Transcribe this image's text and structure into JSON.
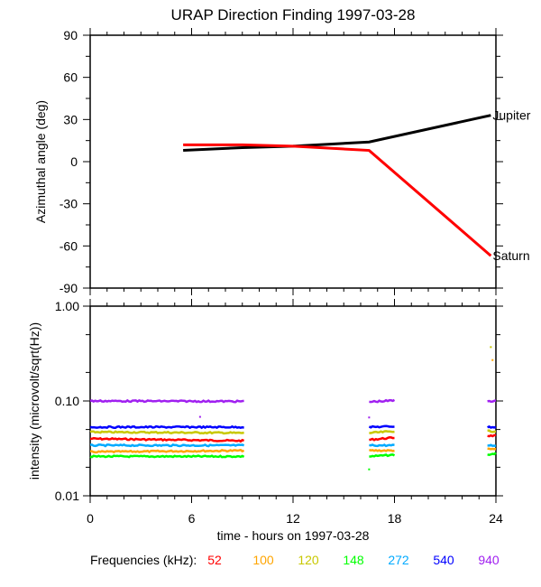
{
  "chart_data": [
    {
      "type": "line",
      "title": "URAP Direction Finding  1997-03-28",
      "ylabel": "Azimuthal angle (deg)",
      "xlabel": "",
      "xlim": [
        0,
        24
      ],
      "ylim": [
        -90,
        90
      ],
      "yticks": [
        "90",
        "60",
        "30",
        "0",
        "-30",
        "-60",
        "-90"
      ],
      "ytick_values": [
        90,
        60,
        30,
        0,
        -30,
        -60,
        -90
      ],
      "series": [
        {
          "name": "Jupiter",
          "color": "#000000",
          "x": [
            5.5,
            9,
            12,
            16.5,
            23.7
          ],
          "y": [
            8,
            10,
            11,
            14,
            33
          ]
        },
        {
          "name": "Saturn",
          "color": "#ff0000",
          "x": [
            5.5,
            9,
            12,
            16.5,
            23.7
          ],
          "y": [
            12,
            12,
            11,
            8,
            -67
          ]
        }
      ]
    },
    {
      "type": "line",
      "ylabel": "intensity (microvolt/sqrt(Hz))",
      "xlabel": "time - hours on 1997-03-28",
      "xlim": [
        0,
        24
      ],
      "ylim": [
        0.01,
        1.0
      ],
      "yscale": "log",
      "yticks": [
        "1.00",
        "0.10",
        "0.01"
      ],
      "ytick_values": [
        1.0,
        0.1,
        0.01
      ],
      "xticks": [
        "0",
        "6",
        "12",
        "18",
        "24"
      ],
      "xtick_values": [
        0,
        6,
        12,
        18,
        24
      ],
      "legend_title": "Frequencies (kHz):",
      "segments_hours": [
        [
          0,
          9.1
        ],
        [
          16.5,
          18.0
        ],
        [
          23.5,
          24.0
        ]
      ],
      "series": [
        {
          "name": "52",
          "color": "#ff0000",
          "levels": [
            [
              0.04,
              0.038
            ],
            [
              0.039,
              0.041
            ],
            [
              0.043,
              0.043
            ]
          ]
        },
        {
          "name": "100",
          "color": "#ffa500",
          "levels": [
            [
              0.029,
              0.03
            ],
            [
              0.03,
              0.03
            ],
            [
              0.031,
              0.031
            ]
          ],
          "points": [
            [
              23.8,
              0.27
            ]
          ]
        },
        {
          "name": "120",
          "color": "#c8c800",
          "levels": [
            [
              0.047,
              0.046
            ],
            [
              0.046,
              0.048
            ],
            [
              0.048,
              0.048
            ]
          ],
          "points": [
            [
              23.7,
              0.37
            ]
          ]
        },
        {
          "name": "148",
          "color": "#00ff00",
          "levels": [
            [
              0.026,
              0.026
            ],
            [
              0.026,
              0.027
            ],
            [
              0.027,
              0.028
            ]
          ],
          "points": [
            [
              16.5,
              0.019
            ]
          ]
        },
        {
          "name": "272",
          "color": "#00aaff",
          "levels": [
            [
              0.034,
              0.034
            ],
            [
              0.034,
              0.034
            ],
            [
              0.034,
              0.034
            ]
          ]
        },
        {
          "name": "540",
          "color": "#0000ff",
          "levels": [
            [
              0.053,
              0.053
            ],
            [
              0.053,
              0.054
            ],
            [
              0.053,
              0.053
            ]
          ]
        },
        {
          "name": "940",
          "color": "#a020f0",
          "levels": [
            [
              0.1,
              0.099
            ],
            [
              0.098,
              0.101
            ],
            [
              0.1,
              0.1
            ]
          ],
          "points": [
            [
              6.5,
              0.068
            ],
            [
              16.5,
              0.067
            ]
          ]
        }
      ]
    }
  ]
}
